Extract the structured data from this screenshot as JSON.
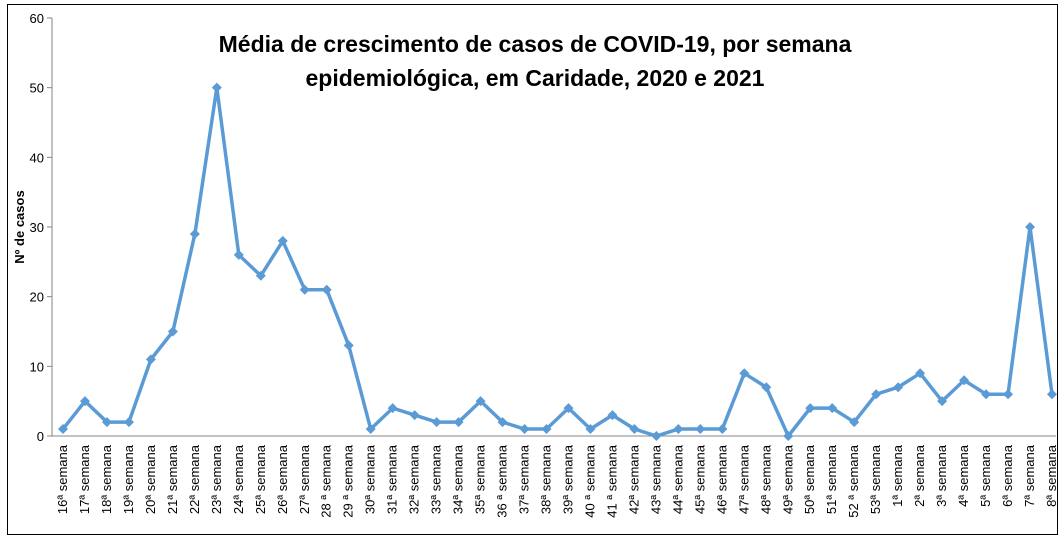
{
  "chart_data": {
    "type": "line",
    "title": "Média de crescimento de casos de COVID-19, por semana",
    "subtitle": "epidemiológica, em Caridade, 2020 e 2021",
    "y_label": "Nº de casos",
    "categories": [
      "16ª semana",
      "17ª semana",
      "18ª semana",
      "19ª semana",
      "20ª semana",
      "21ª semana",
      "22ª semana",
      "23ª semana",
      "24ª semana",
      "25ª semana",
      "26ª semana",
      "27ª semana",
      "28 ª semana",
      "29 ª semana",
      "30ª semana",
      "31ª semana",
      "32ª semana",
      "33ª semana",
      "34ª semana",
      "35ª semana",
      "36 ª semana",
      "37ª semana",
      "38ª semana",
      "39ª semana",
      "40 ª semana",
      "41 ª semana",
      "42ª semana",
      "43ª semana",
      "44ª semana",
      "45ª semana",
      "46ª semana",
      "47ª semana",
      "48ª semana",
      "49ª semana",
      "50ª semana",
      "51ª semana",
      "52 ª semana",
      "53ª semana",
      "1ª semana",
      "2ª semana",
      "3ª semana",
      "4ª semana",
      "5ª semana",
      "6ª semana",
      "7ª semana",
      "8ª semana"
    ],
    "series": [
      {
        "name": "Nº de casos",
        "color": "#5b9bd5",
        "values": [
          1,
          5,
          2,
          2,
          11,
          15,
          29,
          50,
          26,
          23,
          28,
          21,
          21,
          13,
          1,
          4,
          3,
          2,
          2,
          5,
          2,
          1,
          1,
          4,
          1,
          3,
          1,
          0,
          1,
          1,
          1,
          9,
          7,
          0,
          4,
          4,
          2,
          6,
          7,
          9,
          5,
          8,
          6,
          6,
          30,
          6
        ]
      }
    ],
    "ylim": [
      0,
      60
    ],
    "yticks": [
      0,
      10,
      20,
      30,
      40,
      50,
      60
    ],
    "grid": false
  }
}
